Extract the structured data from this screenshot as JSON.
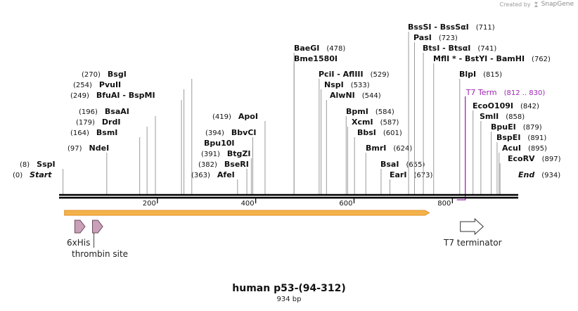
{
  "credit": {
    "created_by": "Created by",
    "brand": "SnapGene"
  },
  "plasmid": {
    "name": "human p53-(94-312)",
    "length_label": "934 bp",
    "length": 934
  },
  "ruler": {
    "ticks": [
      200,
      400,
      600,
      800
    ]
  },
  "colors": {
    "backbone": "#000000",
    "enzyme_line": "#9a9a9a",
    "feature_purple": "#9c27b0",
    "orf_fill": "#f4b24a",
    "orf_outline": "#e0912a",
    "tag_fill": "#c9a0b8",
    "terminator_fill": "#ffffff"
  },
  "sites": [
    {
      "name": "Start",
      "pos": 0,
      "pos_label": "(0)",
      "side": "left",
      "style": "italic"
    },
    {
      "name": "SspI",
      "pos": 8,
      "pos_label": "(8)",
      "side": "left"
    },
    {
      "name": "NdeI",
      "pos": 97,
      "pos_label": "(97)",
      "side": "left"
    },
    {
      "name": "BsmI",
      "pos": 164,
      "pos_label": "(164)",
      "side": "left"
    },
    {
      "name": "DrdI",
      "pos": 179,
      "pos_label": "(179)",
      "side": "left"
    },
    {
      "name": "BsaAI",
      "pos": 196,
      "pos_label": "(196)",
      "side": "left"
    },
    {
      "name": "BfuAI  -  BspMI",
      "pos": 249,
      "pos_label": "(249)",
      "side": "left"
    },
    {
      "name": "PvuII",
      "pos": 254,
      "pos_label": "(254)",
      "side": "left"
    },
    {
      "name": "BsgI",
      "pos": 270,
      "pos_label": "(270)",
      "side": "left"
    },
    {
      "name": "AfeI",
      "pos": 363,
      "pos_label": "(363)",
      "side": "left"
    },
    {
      "name": "BseRI",
      "pos": 382,
      "pos_label": "(382)",
      "side": "left"
    },
    {
      "name": "BtgZI",
      "pos": 391,
      "pos_label": "(391)",
      "side": "left"
    },
    {
      "name": "Bpu10I",
      "pos": 394,
      "pos_label": "",
      "side": "left"
    },
    {
      "name": "BbvCI",
      "pos": 394,
      "pos_label": "(394)",
      "side": "left"
    },
    {
      "name": "ApoI",
      "pos": 419,
      "pos_label": "(419)",
      "side": "left"
    },
    {
      "name": "Bme1580I",
      "pos": 478,
      "pos_label": "",
      "side": "right"
    },
    {
      "name": "BaeGI",
      "pos": 478,
      "pos_label": "(478)",
      "side": "right"
    },
    {
      "name": "PciI  -  AflIII",
      "pos": 529,
      "pos_label": "(529)",
      "side": "right"
    },
    {
      "name": "NspI",
      "pos": 533,
      "pos_label": "(533)",
      "side": "right"
    },
    {
      "name": "AlwNI",
      "pos": 544,
      "pos_label": "(544)",
      "side": "right"
    },
    {
      "name": "BpmI",
      "pos": 584,
      "pos_label": "(584)",
      "side": "right"
    },
    {
      "name": "XcmI",
      "pos": 587,
      "pos_label": "(587)",
      "side": "right"
    },
    {
      "name": "BbsI",
      "pos": 601,
      "pos_label": "(601)",
      "side": "right"
    },
    {
      "name": "BmrI",
      "pos": 624,
      "pos_label": "(624)",
      "side": "right"
    },
    {
      "name": "BsaI",
      "pos": 655,
      "pos_label": "(655)",
      "side": "right"
    },
    {
      "name": "EarI",
      "pos": 673,
      "pos_label": "(673)",
      "side": "right"
    },
    {
      "name": "BssSI  -  BssSαI",
      "pos": 711,
      "pos_label": "(711)",
      "side": "right"
    },
    {
      "name": "PasI",
      "pos": 723,
      "pos_label": "(723)",
      "side": "right"
    },
    {
      "name": "BtsI  -  BtsαI",
      "pos": 741,
      "pos_label": "(741)",
      "side": "right"
    },
    {
      "name": "MflI *  -  BstYI  -  BamHI",
      "pos": 762,
      "pos_label": "(762)",
      "side": "right"
    },
    {
      "name": "BlpI",
      "pos": 815,
      "pos_label": "(815)",
      "side": "right"
    },
    {
      "name": "EcoO109I",
      "pos": 842,
      "pos_label": "(842)",
      "side": "right"
    },
    {
      "name": "SmlI",
      "pos": 858,
      "pos_label": "(858)",
      "side": "right"
    },
    {
      "name": "BpuEI",
      "pos": 879,
      "pos_label": "(879)",
      "side": "right"
    },
    {
      "name": "BspEI",
      "pos": 891,
      "pos_label": "(891)",
      "side": "right"
    },
    {
      "name": "AcuI",
      "pos": 895,
      "pos_label": "(895)",
      "side": "right"
    },
    {
      "name": "EcoRV",
      "pos": 897,
      "pos_label": "(897)",
      "side": "right"
    },
    {
      "name": "End",
      "pos": 934,
      "pos_label": "(934)",
      "side": "right",
      "style": "italic"
    }
  ],
  "t7_term_site": {
    "name": "T7 Term",
    "range_label": "(812 .. 830)",
    "start": 812,
    "end": 830
  },
  "features": [
    {
      "type": "orf",
      "name": "",
      "start": 11,
      "end": 753
    },
    {
      "type": "tag",
      "name": "6xHis",
      "start": 32,
      "end": 50
    },
    {
      "type": "tag",
      "name": "thrombin site",
      "start": 68,
      "end": 86
    },
    {
      "type": "terminator",
      "name": "T7 terminator",
      "start": 812,
      "end": 860
    }
  ]
}
